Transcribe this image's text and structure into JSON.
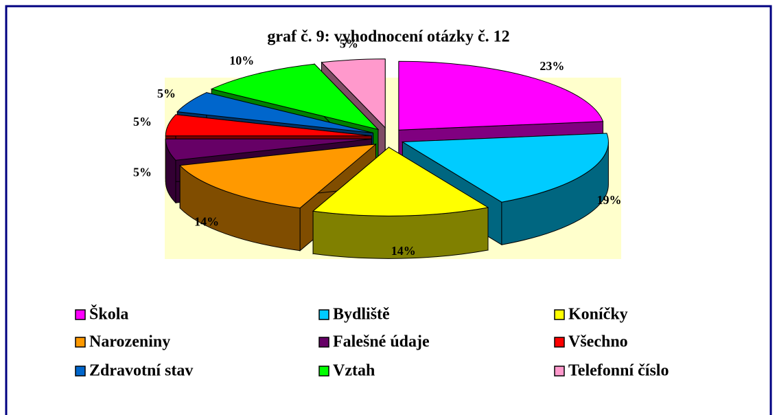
{
  "chart_data": {
    "type": "pie",
    "title": "graf č. 9: vyhodnocení otázky č. 12",
    "categories": [
      "Škola",
      "Bydliště",
      "Koníčky",
      "Narozeniny",
      "Falešné údaje",
      "Všechno",
      "Zdravotní stav",
      "Vztah",
      "Telefonní číslo"
    ],
    "values": [
      23,
      19,
      14,
      14,
      5,
      5,
      5,
      10,
      5
    ],
    "value_labels": [
      "23%",
      "19%",
      "14%",
      "14%",
      "5%",
      "5%",
      "5%",
      "10%",
      "5%"
    ],
    "colors": [
      "#ff00ff",
      "#00ccff",
      "#ffff00",
      "#ff9900",
      "#660066",
      "#ff0000",
      "#0066cc",
      "#00ff00",
      "#ff99cc"
    ],
    "legend": "bottom"
  }
}
